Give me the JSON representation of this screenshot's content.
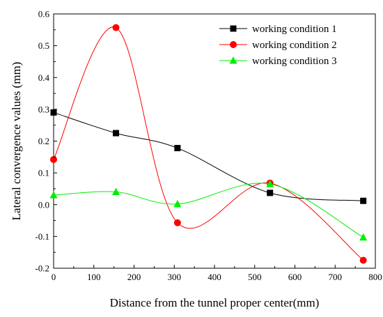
{
  "chart_data": {
    "type": "line",
    "xlabel": "Distance from the tunnel proper center(mm)",
    "ylabel": "Lateral convergence values (mm)",
    "xlim": [
      0,
      800
    ],
    "ylim": [
      -0.2,
      0.6
    ],
    "xticks": [
      "0",
      "100",
      "200",
      "300",
      "400",
      "500",
      "600",
      "700",
      "800"
    ],
    "yticks": [
      "-0.2",
      "-0.1",
      "0.0",
      "0.1",
      "0.2",
      "0.3",
      "0.4",
      "0.5",
      "0.6"
    ],
    "grid": false,
    "legend_position": "top-right",
    "smooth": true,
    "series": [
      {
        "name": "working condition 1",
        "color": "#000000",
        "marker": "square",
        "x": [
          0,
          155,
          308,
          538,
          770
        ],
        "y": [
          0.29,
          0.225,
          0.178,
          0.037,
          0.012
        ]
      },
      {
        "name": "working condition 2",
        "color": "#ff0000",
        "marker": "circle",
        "x": [
          0,
          155,
          308,
          538,
          770
        ],
        "y": [
          0.142,
          0.557,
          -0.057,
          0.068,
          -0.175
        ]
      },
      {
        "name": "working condition 3",
        "color": "#00ee00",
        "marker": "triangle",
        "x": [
          0,
          155,
          308,
          538,
          770
        ],
        "y": [
          0.03,
          0.04,
          0.002,
          0.065,
          -0.103
        ]
      }
    ]
  }
}
